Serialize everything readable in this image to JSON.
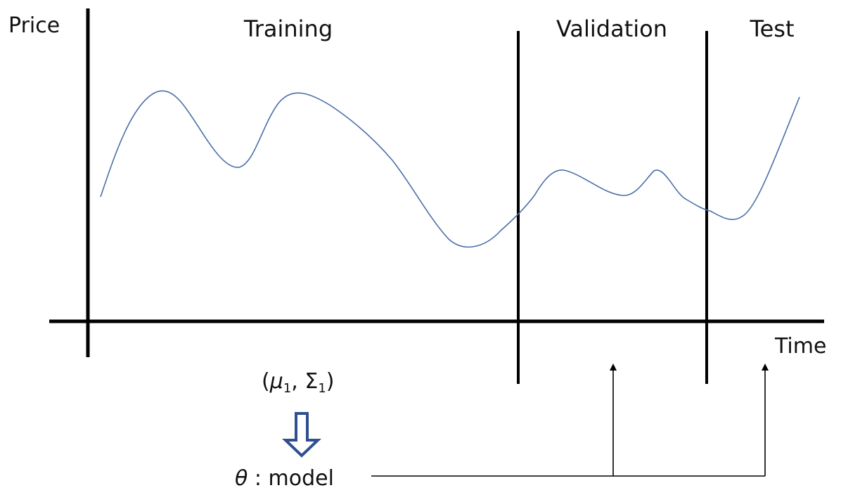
{
  "axes": {
    "y_label": "Price",
    "x_label": "Time"
  },
  "sections": {
    "training": "Training",
    "validation": "Validation",
    "test": "Test"
  },
  "parameters": {
    "open": "(",
    "mu": "μ",
    "mu_sub": "1",
    "comma": ", ",
    "sigma": "Σ",
    "sigma_sub": "1",
    "close": ")"
  },
  "model": {
    "symbol": "θ",
    "separator": " : ",
    "label": "model"
  },
  "colors": {
    "curve": "#4a6fa8",
    "arrow_fill": "#ffffff",
    "arrow_stroke": "#2f4f8f",
    "axes": "#000000"
  }
}
